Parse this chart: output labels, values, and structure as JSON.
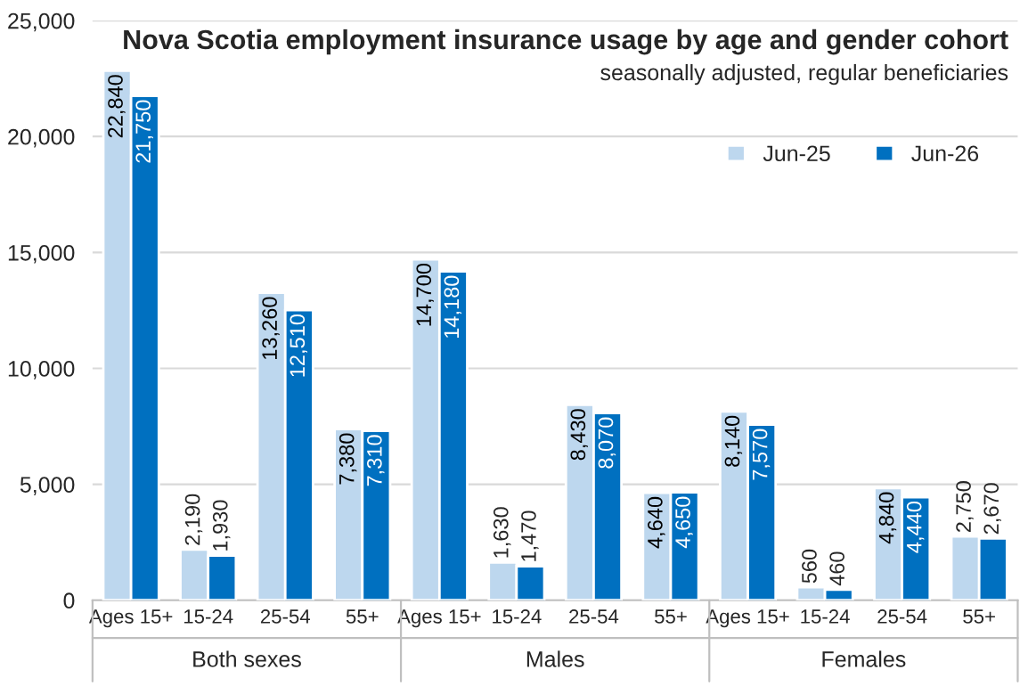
{
  "chart_data": {
    "type": "bar",
    "title": "Nova Scotia employment insurance usage by age and gender cohort",
    "subtitle": "seasonally adjusted, regular beneficiaries",
    "categories": [
      "Ages 15+",
      "15-24",
      "25-54",
      "55+",
      "Ages 15+",
      "15-24",
      "25-54",
      "55+",
      "Ages 15+",
      "15-24",
      "25-54",
      "55+"
    ],
    "annotations": [
      "Both sexes",
      "Males",
      "Females"
    ],
    "series": [
      {
        "name": "Jun-25",
        "color": "#bdd7ee",
        "values": [
          22840,
          2190,
          13260,
          7380,
          14700,
          1630,
          8430,
          4640,
          8140,
          560,
          4840,
          2750
        ],
        "value_labels": [
          "22,840",
          "2,190",
          "13,260",
          "7,380",
          "14,700",
          "1,630",
          "8,430",
          "4,640",
          "8,140",
          "560",
          "4,840",
          "2,750"
        ]
      },
      {
        "name": "Jun-26",
        "color": "#0070c0",
        "values": [
          21750,
          1930,
          12510,
          7310,
          14180,
          1470,
          8070,
          4650,
          7570,
          460,
          4440,
          2670
        ],
        "value_labels": [
          "21,750",
          "1,930",
          "12,510",
          "7,310",
          "14,180",
          "1,470",
          "8,070",
          "4,650",
          "7,570",
          "460",
          "4,440",
          "2,670"
        ]
      }
    ],
    "ylim": [
      0,
      25000
    ],
    "yticks": [
      0,
      {
        "value": 5000,
        "label": "5,000"
      },
      {
        "value": 10000,
        "label": "10,000"
      },
      {
        "value": 15000,
        "label": "15,000"
      },
      {
        "value": 20000,
        "label": "20,000"
      },
      {
        "value": 25000,
        "label": "25,000"
      }
    ],
    "grid": "y",
    "legend": "top right"
  }
}
